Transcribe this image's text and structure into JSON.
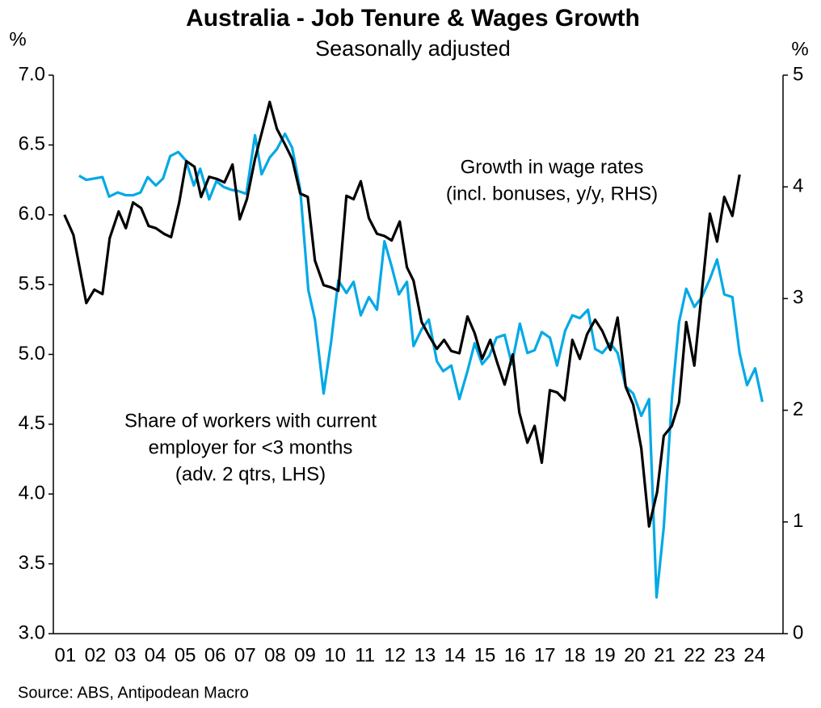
{
  "chart_data": {
    "type": "line",
    "title": "Australia - Job Tenure & Wages Growth",
    "subtitle": "Seasonally adjusted",
    "y_label": "%",
    "y2_label": "%",
    "source": "Source: ABS, Antipodean Macro",
    "xlim": [
      2001.1,
      2025.45
    ],
    "xticks": [
      {
        "value": 2001.5,
        "label": "01"
      },
      {
        "value": 2002.5,
        "label": "02"
      },
      {
        "value": 2003.5,
        "label": "03"
      },
      {
        "value": 2004.5,
        "label": "04"
      },
      {
        "value": 2005.5,
        "label": "05"
      },
      {
        "value": 2006.5,
        "label": "06"
      },
      {
        "value": 2007.5,
        "label": "07"
      },
      {
        "value": 2008.5,
        "label": "08"
      },
      {
        "value": 2009.5,
        "label": "09"
      },
      {
        "value": 2010.5,
        "label": "10"
      },
      {
        "value": 2011.5,
        "label": "11"
      },
      {
        "value": 2012.5,
        "label": "12"
      },
      {
        "value": 2013.5,
        "label": "13"
      },
      {
        "value": 2014.5,
        "label": "14"
      },
      {
        "value": 2015.5,
        "label": "15"
      },
      {
        "value": 2016.5,
        "label": "16"
      },
      {
        "value": 2017.5,
        "label": "17"
      },
      {
        "value": 2018.5,
        "label": "18"
      },
      {
        "value": 2019.5,
        "label": "19"
      },
      {
        "value": 2020.5,
        "label": "20"
      },
      {
        "value": 2021.5,
        "label": "21"
      },
      {
        "value": 2022.5,
        "label": "22"
      },
      {
        "value": 2023.5,
        "label": "23"
      },
      {
        "value": 2024.5,
        "label": "24"
      }
    ],
    "ylim": [
      3.0,
      7.0
    ],
    "yticks": [
      {
        "value": 3,
        "label": "3.0"
      },
      3.5,
      {
        "value": 4,
        "label": "4.0"
      },
      4.5,
      {
        "value": 5,
        "label": "5.0"
      },
      5.5,
      {
        "value": 6,
        "label": "6.0"
      },
      6.5,
      {
        "value": 7,
        "label": "7.0"
      }
    ],
    "y2lim": [
      0,
      5
    ],
    "y2ticks": [
      0,
      1,
      2,
      3,
      4,
      5
    ],
    "grid": false,
    "series": [
      {
        "label_lines": [
          "Share of workers with current",
          "employer for <3 months",
          "(adv. 2 qtrs, LHS)"
        ],
        "color": "#00a9e6",
        "axis": "y",
        "x": [
          2001.96,
          2002.2,
          2002.47,
          2002.74,
          2002.96,
          2003.25,
          2003.52,
          2003.76,
          2004.01,
          2004.25,
          2004.52,
          2004.76,
          2005.0,
          2005.27,
          2005.52,
          2005.79,
          2006.0,
          2006.3,
          2006.54,
          2006.78,
          2007.02,
          2007.27,
          2007.54,
          2007.83,
          2008.05,
          2008.32,
          2008.56,
          2008.83,
          2009.07,
          2009.34,
          2009.61,
          2009.83,
          2010.12,
          2010.37,
          2010.61,
          2010.88,
          2011.12,
          2011.36,
          2011.63,
          2011.9,
          2012.15,
          2012.39,
          2012.63,
          2012.9,
          2013.12,
          2013.39,
          2013.63,
          2013.9,
          2014.11,
          2014.38,
          2014.65,
          2014.92,
          2015.16,
          2015.41,
          2015.65,
          2015.89,
          2016.16,
          2016.4,
          2016.67,
          2016.92,
          2017.16,
          2017.4,
          2017.67,
          2017.91,
          2018.18,
          2018.42,
          2018.67,
          2018.94,
          2019.18,
          2019.42,
          2019.69,
          2019.93,
          2020.2,
          2020.45,
          2020.72,
          2020.98,
          2021.23,
          2021.47,
          2021.74,
          2021.98,
          2022.22,
          2022.49,
          2022.74,
          2023.01,
          2023.25,
          2023.49,
          2023.76,
          2024.0,
          2024.25,
          2024.52,
          2024.76
        ],
        "values": [
          6.28,
          6.25,
          6.26,
          6.27,
          6.13,
          6.16,
          6.14,
          6.14,
          6.16,
          6.27,
          6.21,
          6.26,
          6.42,
          6.45,
          6.39,
          6.21,
          6.33,
          6.11,
          6.24,
          6.2,
          6.18,
          6.17,
          6.15,
          6.57,
          6.29,
          6.41,
          6.47,
          6.58,
          6.48,
          6.18,
          5.46,
          5.25,
          4.72,
          5.09,
          5.53,
          5.44,
          5.52,
          5.28,
          5.41,
          5.32,
          5.81,
          5.63,
          5.43,
          5.52,
          5.06,
          5.18,
          5.25,
          4.95,
          4.88,
          4.92,
          4.68,
          4.88,
          5.08,
          4.93,
          4.99,
          5.12,
          5.14,
          4.93,
          5.22,
          5.01,
          5.03,
          5.16,
          5.12,
          4.92,
          5.17,
          5.28,
          5.26,
          5.32,
          5.04,
          5.01,
          5.08,
          5.01,
          4.77,
          4.72,
          4.56,
          4.68,
          3.26,
          3.76,
          4.68,
          5.23,
          5.47,
          5.34,
          5.41,
          5.54,
          5.68,
          5.43,
          5.41,
          5.01,
          4.78,
          4.9,
          4.66
        ]
      },
      {
        "label_lines": [
          "Growth in wage rates",
          "(incl. bonuses, y/y, RHS)"
        ],
        "color": "#000000",
        "axis": "y2",
        "x": [
          2001.47,
          2001.77,
          2002.2,
          2002.47,
          2002.74,
          2002.98,
          2003.28,
          2003.52,
          2003.76,
          2004.03,
          2004.28,
          2004.52,
          2004.79,
          2005.03,
          2005.3,
          2005.54,
          2005.81,
          2006.03,
          2006.3,
          2006.57,
          2006.81,
          2007.08,
          2007.32,
          2007.56,
          2007.83,
          2008.32,
          2008.56,
          2008.83,
          2009.07,
          2009.34,
          2009.59,
          2009.83,
          2010.12,
          2010.37,
          2010.61,
          2010.88,
          2011.12,
          2011.36,
          2011.63,
          2011.9,
          2012.15,
          2012.39,
          2012.66,
          2012.9,
          2013.12,
          2013.39,
          2013.65,
          2013.9,
          2014.14,
          2014.38,
          2014.65,
          2014.92,
          2015.16,
          2015.41,
          2015.68,
          2015.92,
          2016.16,
          2016.43,
          2016.65,
          2016.92,
          2017.16,
          2017.4,
          2017.67,
          2017.91,
          2018.16,
          2018.42,
          2018.67,
          2018.91,
          2019.18,
          2019.42,
          2019.69,
          2019.93,
          2020.2,
          2020.45,
          2020.72,
          2020.98,
          2021.25,
          2021.47,
          2021.74,
          2021.98,
          2022.22,
          2022.49,
          2022.74,
          2023.01,
          2023.25,
          2023.49,
          2023.76,
          2024.0
        ],
        "values": [
          3.75,
          3.57,
          2.96,
          3.08,
          3.04,
          3.54,
          3.78,
          3.63,
          3.86,
          3.81,
          3.65,
          3.63,
          3.58,
          3.55,
          3.86,
          4.23,
          4.18,
          3.91,
          4.09,
          4.07,
          4.04,
          4.2,
          3.71,
          3.89,
          4.25,
          4.76,
          4.52,
          4.38,
          4.25,
          3.94,
          3.91,
          3.34,
          3.12,
          3.1,
          3.07,
          3.92,
          3.89,
          4.05,
          3.72,
          3.58,
          3.56,
          3.52,
          3.69,
          3.28,
          3.16,
          2.79,
          2.66,
          2.55,
          2.63,
          2.53,
          2.51,
          2.84,
          2.69,
          2.46,
          2.63,
          2.42,
          2.23,
          2.5,
          1.98,
          1.71,
          1.86,
          1.53,
          2.18,
          2.16,
          2.09,
          2.63,
          2.46,
          2.68,
          2.81,
          2.71,
          2.54,
          2.83,
          2.21,
          2.05,
          1.66,
          0.96,
          1.27,
          1.77,
          1.86,
          2.07,
          2.79,
          2.4,
          3.06,
          3.76,
          3.51,
          3.91,
          3.74,
          4.11
        ]
      }
    ]
  }
}
